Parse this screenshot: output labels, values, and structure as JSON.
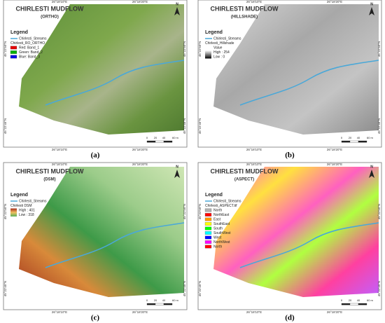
{
  "panels": [
    {
      "label": "(a)",
      "title": "CHIRLESTI MUDFLOW",
      "subtitle": "(ORTHO)",
      "legend": {
        "heading": "Legend",
        "items": [
          {
            "text": "Chirlesti_Streams",
            "line": "#4aa8d8"
          },
          {
            "text": "Chirlesti_RO_ORTHO"
          },
          {
            "text": "Red:   Band_1",
            "swatch": "#e00000"
          },
          {
            "text": "Green: Band_2",
            "swatch": "#00b000"
          },
          {
            "text": "Blue:  Band_3",
            "swatch": "#0000e0"
          }
        ]
      }
    },
    {
      "label": "(b)",
      "title": "CHIRLESTI MUDFLOW",
      "subtitle": "(HILLSHADE)",
      "legend": {
        "heading": "Legend",
        "items": [
          {
            "text": "Chirlesti_Streams",
            "line": "#4aa8d8"
          },
          {
            "text": "Chirlesti_Hillshade"
          },
          {
            "text": "Value"
          },
          {
            "text": "High : 254",
            "ramp": [
              "#ffffff",
              "#000000"
            ]
          },
          {
            "text": "Low : 0"
          }
        ]
      }
    },
    {
      "label": "(c)",
      "title": "CHIRLESTI MUDFLOW",
      "subtitle": "(DSM)",
      "legend": {
        "heading": "Legend",
        "items": [
          {
            "text": "Chirlesti_Streams",
            "line": "#4aa8d8"
          },
          {
            "text": "Chirlesti DSM"
          },
          {
            "text": "High : 401",
            "ramp": [
              "#a52a1a",
              "#f0c060",
              "#5ab05a"
            ]
          },
          {
            "text": "Low : 318"
          }
        ]
      }
    },
    {
      "label": "(d)",
      "title": "CHIRLESTI MUDFLOW",
      "subtitle": "(ASPECT)",
      "legend": {
        "heading": "Legend",
        "items": [
          {
            "text": "Chirlesti_Streams",
            "line": "#4aa8d8"
          },
          {
            "text": "Chirlesti_ASPECT.tif"
          },
          {
            "text": "North",
            "swatch": "#b0b0b0"
          },
          {
            "text": "NorthEast",
            "swatch": "#ff0000"
          },
          {
            "text": "East",
            "swatch": "#ff9900"
          },
          {
            "text": "SouthEast",
            "swatch": "#ffff00"
          },
          {
            "text": "South",
            "swatch": "#00ff00"
          },
          {
            "text": "SouthWest",
            "swatch": "#00ffff"
          },
          {
            "text": "West",
            "swatch": "#0000ff"
          },
          {
            "text": "NorthWest",
            "swatch": "#ff00ff"
          },
          {
            "text": "North",
            "swatch": "#ff0000"
          }
        ]
      }
    }
  ],
  "lon_labels": [
    "26°18'10\"E",
    "26°18'20\"E"
  ],
  "lat_labels": [
    "45°22'50\"N",
    "45°22'45\"N"
  ],
  "scale_labels": [
    "0",
    "20",
    "40",
    "60 m"
  ],
  "north": "N"
}
